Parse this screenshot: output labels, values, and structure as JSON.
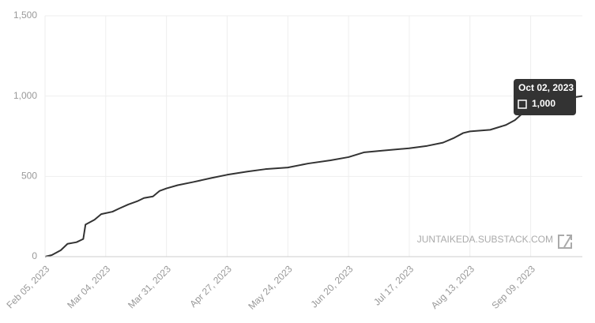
{
  "chart_data": {
    "type": "line",
    "x": [
      "2023-02-05",
      "2023-02-08",
      "2023-02-12",
      "2023-02-15",
      "2023-02-19",
      "2023-02-22",
      "2023-02-23",
      "2023-02-27",
      "2023-03-02",
      "2023-03-07",
      "2023-03-10",
      "2023-03-14",
      "2023-03-18",
      "2023-03-21",
      "2023-03-25",
      "2023-03-28",
      "2023-03-31",
      "2023-04-05",
      "2023-04-12",
      "2023-04-20",
      "2023-04-27",
      "2023-05-06",
      "2023-05-14",
      "2023-05-24",
      "2023-06-02",
      "2023-06-12",
      "2023-06-20",
      "2023-06-27",
      "2023-07-05",
      "2023-07-17",
      "2023-07-25",
      "2023-08-01",
      "2023-08-06",
      "2023-08-10",
      "2023-08-13",
      "2023-08-22",
      "2023-08-29",
      "2023-09-02",
      "2023-09-06",
      "2023-09-09",
      "2023-09-20",
      "2023-10-02"
    ],
    "series": [
      {
        "color": "#333333",
        "values": [
          0,
          10,
          40,
          80,
          90,
          110,
          200,
          230,
          265,
          280,
          300,
          325,
          345,
          365,
          375,
          410,
          425,
          445,
          465,
          490,
          510,
          530,
          545,
          555,
          580,
          600,
          620,
          650,
          660,
          675,
          690,
          710,
          740,
          770,
          780,
          790,
          820,
          850,
          900,
          930,
          975,
          1000
        ]
      }
    ],
    "xlim": [
      "2023-02-05",
      "2023-10-02"
    ],
    "xticks": [
      {
        "value": "2023-02-05",
        "label": "Feb 05, 2023"
      },
      {
        "value": "2023-03-04",
        "label": "Mar 04, 2023"
      },
      {
        "value": "2023-03-31",
        "label": "Mar 31, 2023"
      },
      {
        "value": "2023-04-27",
        "label": "Apr 27, 2023"
      },
      {
        "value": "2023-05-24",
        "label": "May 24, 2023"
      },
      {
        "value": "2023-06-20",
        "label": "Jun 20, 2023"
      },
      {
        "value": "2023-07-17",
        "label": "Jul 17, 2023"
      },
      {
        "value": "2023-08-13",
        "label": "Aug 13, 2023"
      },
      {
        "value": "2023-09-09",
        "label": "Sep 09, 2023"
      }
    ],
    "ylim": [
      0,
      1500
    ],
    "yticks": [
      0,
      500,
      {
        "value": 1000,
        "label": "1,000"
      },
      {
        "value": 1500,
        "label": "1,500"
      }
    ],
    "grid": true,
    "tooltip": {
      "title": "Oct 02, 2023",
      "label": "1,000"
    },
    "watermark": "JUNTAIKEDA.SUBSTACK.COM"
  }
}
